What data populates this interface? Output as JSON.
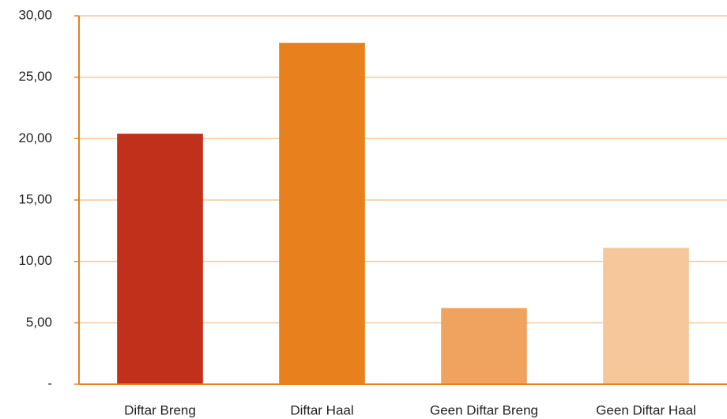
{
  "chart_data": {
    "type": "bar",
    "categories": [
      "Diftar Breng",
      "Diftar Haal",
      "Geen Diftar Breng",
      "Geen Diftar Haal"
    ],
    "values": [
      20.4,
      27.8,
      6.2,
      11.1
    ],
    "colors": [
      "#c0301a",
      "#e8801e",
      "#f0a35e",
      "#f5c79b"
    ],
    "axis_color": "#e8801e",
    "grid_color": "#f5c896",
    "ylim": [
      0,
      30
    ],
    "yticks": [
      {
        "value": 0,
        "label": "-"
      },
      {
        "value": 5,
        "label": "5,00"
      },
      {
        "value": 10,
        "label": "10,00"
      },
      {
        "value": 15,
        "label": "15,00"
      },
      {
        "value": 20,
        "label": "20,00"
      },
      {
        "value": 25,
        "label": "25,00"
      },
      {
        "value": 30,
        "label": "30,00"
      }
    ],
    "grid": true
  }
}
